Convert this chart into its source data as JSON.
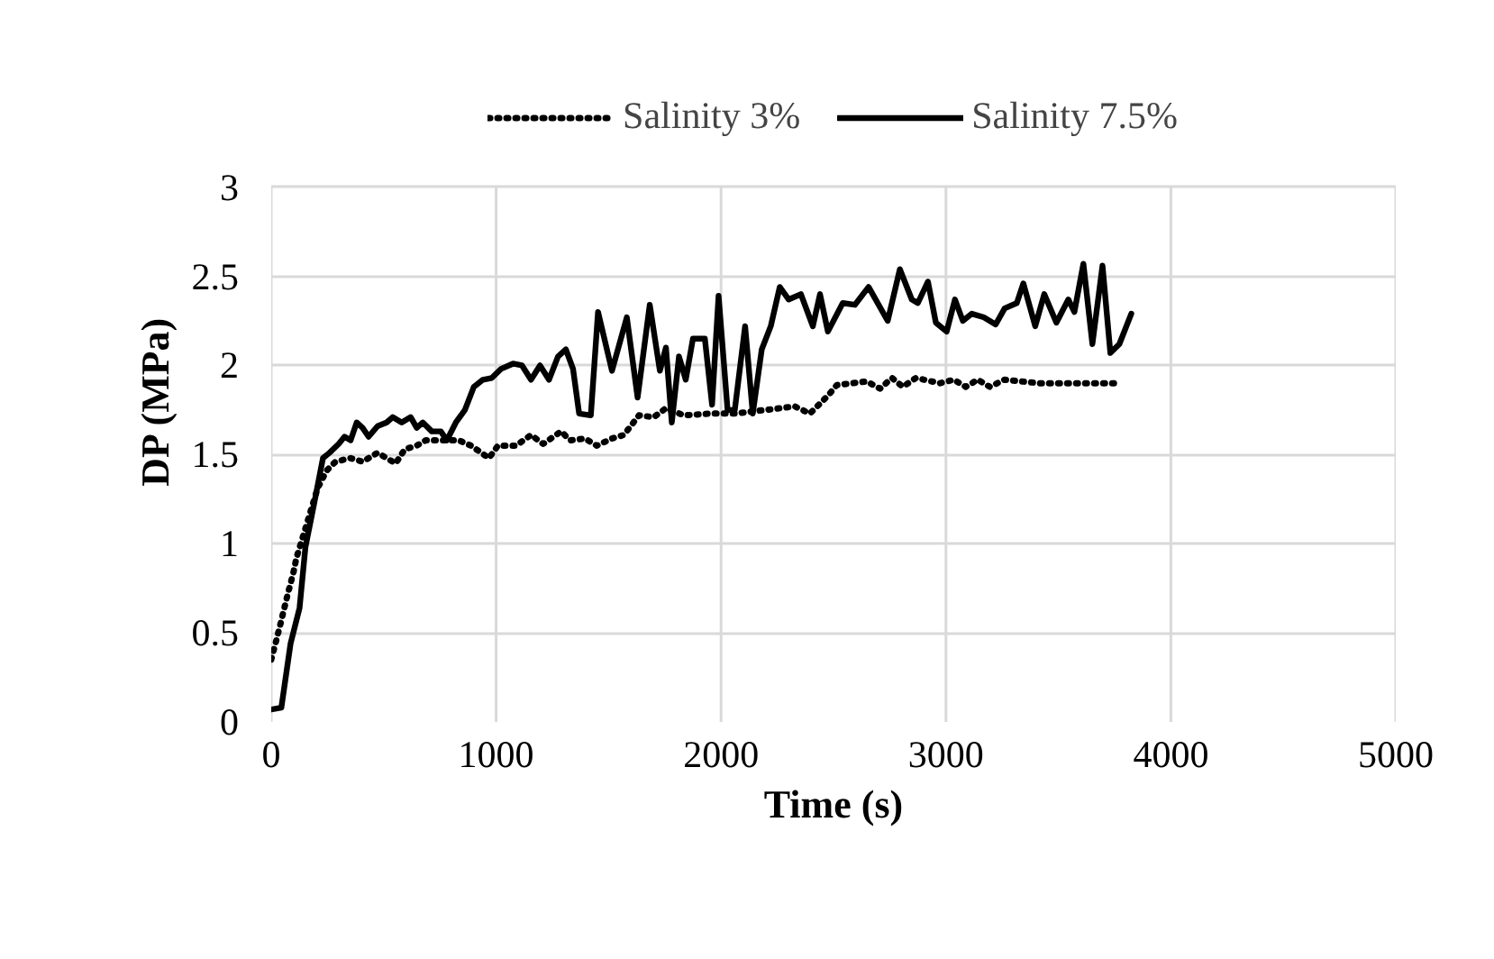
{
  "chart_data": {
    "type": "line",
    "xlabel": "Time (s)",
    "ylabel": "DP (MPa)",
    "xlim": [
      0,
      5000
    ],
    "xticks": [
      0,
      1000,
      2000,
      3000,
      4000,
      5000
    ],
    "ylim": [
      0,
      3
    ],
    "yticks": [
      0,
      0.5,
      1,
      1.5,
      2,
      2.5,
      3
    ],
    "grid": true,
    "legend": "top",
    "series": [
      {
        "name": "Salinity 3%",
        "color": "#000000",
        "line_style": "dotted",
        "x": [
          0,
          19,
          45,
          72,
          99,
          112,
          206,
          246,
          286,
          353,
          406,
          473,
          553,
          594,
          647,
          687,
          754,
          834,
          888,
          968,
          1008,
          1088,
          1155,
          1209,
          1289,
          1329,
          1395,
          1448,
          1515,
          1568,
          1635,
          1701,
          1755,
          1835,
          1955,
          2061,
          2195,
          2328,
          2395,
          2475,
          2515,
          2648,
          2707,
          2760,
          2808,
          2867,
          2973,
          3035,
          3088,
          3141,
          3195,
          3261,
          3421,
          3581,
          3771
        ],
        "values": [
          0.35,
          0.44,
          0.57,
          0.71,
          0.84,
          0.92,
          1.31,
          1.41,
          1.46,
          1.48,
          1.46,
          1.51,
          1.45,
          1.53,
          1.55,
          1.58,
          1.58,
          1.58,
          1.55,
          1.48,
          1.55,
          1.55,
          1.61,
          1.56,
          1.63,
          1.58,
          1.59,
          1.55,
          1.59,
          1.61,
          1.72,
          1.71,
          1.76,
          1.72,
          1.73,
          1.73,
          1.75,
          1.77,
          1.73,
          1.83,
          1.89,
          1.91,
          1.87,
          1.93,
          1.88,
          1.93,
          1.9,
          1.92,
          1.88,
          1.92,
          1.88,
          1.92,
          1.9,
          1.9,
          1.9
        ]
      },
      {
        "name": "Salinity 7.5%",
        "color": "#000000",
        "line_style": "solid",
        "x": [
          0,
          45,
          86,
          126,
          152,
          193,
          230,
          259,
          300,
          326,
          353,
          380,
          406,
          433,
          473,
          513,
          540,
          580,
          620,
          647,
          674,
          714,
          754,
          781,
          821,
          861,
          901,
          941,
          981,
          1021,
          1075,
          1115,
          1155,
          1195,
          1235,
          1275,
          1310,
          1342,
          1369,
          1421,
          1453,
          1515,
          1581,
          1629,
          1683,
          1728,
          1755,
          1781,
          1813,
          1843,
          1875,
          1928,
          1960,
          1989,
          2029,
          2061,
          2107,
          2141,
          2181,
          2221,
          2261,
          2301,
          2355,
          2408,
          2440,
          2475,
          2541,
          2595,
          2656,
          2741,
          2795,
          2848,
          2875,
          2920,
          2955,
          3003,
          3040,
          3075,
          3115,
          3168,
          3221,
          3261,
          3315,
          3344,
          3397,
          3437,
          3491,
          3544,
          3571,
          3611,
          3651,
          3696,
          3731,
          3771,
          3824
        ],
        "values": [
          0.07,
          0.08,
          0.44,
          0.64,
          0.98,
          1.24,
          1.48,
          1.51,
          1.56,
          1.6,
          1.58,
          1.68,
          1.65,
          1.6,
          1.66,
          1.68,
          1.71,
          1.68,
          1.71,
          1.65,
          1.68,
          1.63,
          1.63,
          1.58,
          1.68,
          1.75,
          1.88,
          1.92,
          1.93,
          1.98,
          2.01,
          2.0,
          1.92,
          2.0,
          1.92,
          2.05,
          2.09,
          1.98,
          1.73,
          1.72,
          2.3,
          1.97,
          2.27,
          1.82,
          2.34,
          1.97,
          2.1,
          1.68,
          2.05,
          1.92,
          2.15,
          2.15,
          1.78,
          2.39,
          1.75,
          1.75,
          2.22,
          1.73,
          2.09,
          2.22,
          2.44,
          2.37,
          2.4,
          2.22,
          2.4,
          2.19,
          2.35,
          2.34,
          2.44,
          2.25,
          2.54,
          2.37,
          2.35,
          2.47,
          2.24,
          2.19,
          2.37,
          2.25,
          2.29,
          2.27,
          2.23,
          2.32,
          2.35,
          2.46,
          2.22,
          2.4,
          2.24,
          2.37,
          2.3,
          2.57,
          2.12,
          2.56,
          2.07,
          2.12,
          2.29
        ]
      }
    ]
  }
}
